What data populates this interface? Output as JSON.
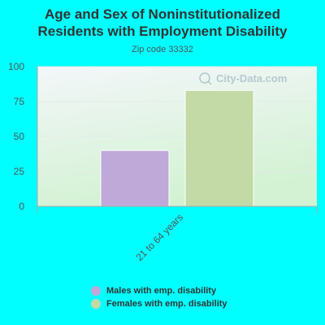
{
  "title": "Age and Sex of Noninstitutionalized Residents with Employment Disability",
  "subtitle": "Zip code 33332",
  "watermark": "City-Data.com",
  "colors": {
    "background": "#00ffff",
    "plot_top": "#f3f6f9",
    "plot_bottom": "#d3f2d3",
    "axis": "#aaaaaa",
    "tick_text": "#555555"
  },
  "chart_data": {
    "type": "bar",
    "categories": [
      "21 to 64 years"
    ],
    "series": [
      {
        "name": "Males with emp. disability",
        "values": [
          40
        ],
        "color": "#bfa9d9"
      },
      {
        "name": "Females with emp. disability",
        "values": [
          83
        ],
        "color": "#c3d9a6"
      }
    ],
    "ylim": [
      0,
      100
    ],
    "yticks": [
      "0",
      "25",
      "50",
      "75",
      "100"
    ],
    "grid": true,
    "legend_position": "bottom"
  }
}
